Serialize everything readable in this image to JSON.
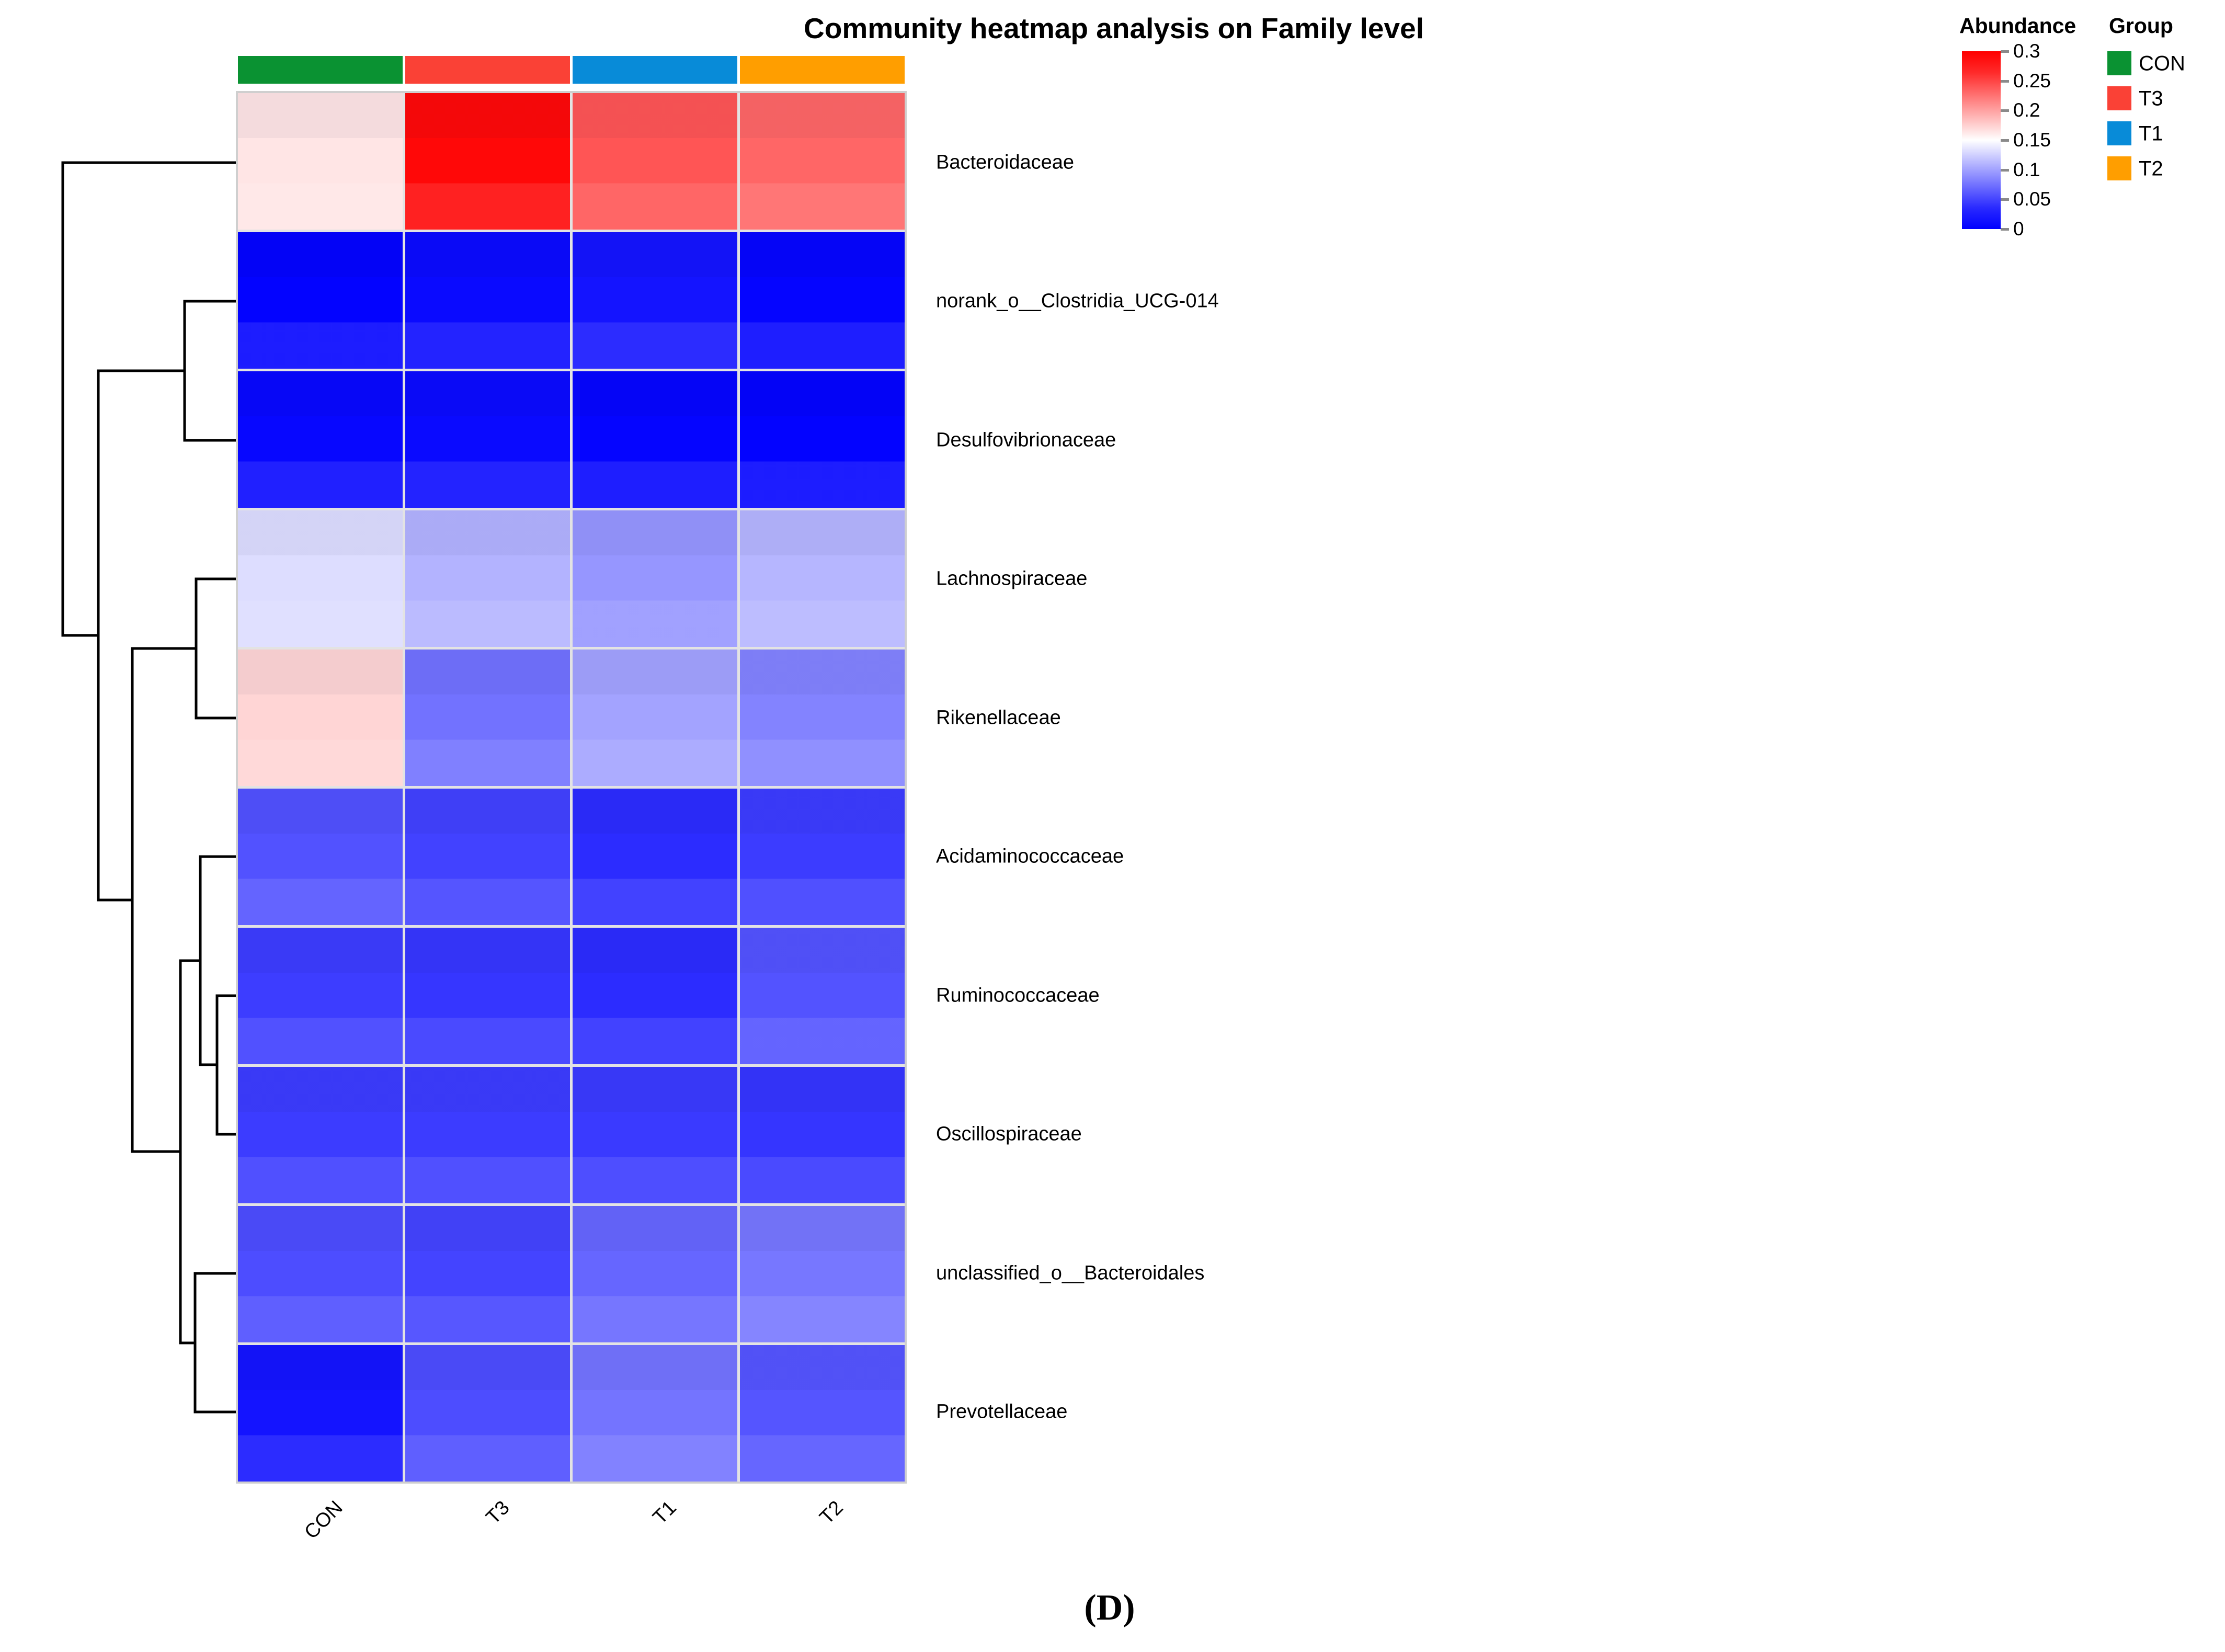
{
  "title": "Community heatmap analysis on Family level",
  "caption": "(D)",
  "chart_data": {
    "type": "heatmap",
    "columns": [
      "CON",
      "T3",
      "T1",
      "T2"
    ],
    "rows": [
      "Bacteroidaceae",
      "norank_o__Clostridia_UCG-014",
      "Desulfovibrionaceae",
      "Lachnospiraceae",
      "Rikenellaceae",
      "Acidaminococcaceae",
      "Ruminococcaceae",
      "Oscillospiraceae",
      "unclassified_o__Bacteroidales",
      "Prevotellaceae"
    ],
    "values": [
      [
        0.165,
        0.295,
        0.25,
        0.24
      ],
      [
        0.002,
        0.006,
        0.012,
        0.003
      ],
      [
        0.004,
        0.006,
        0.003,
        0.002
      ],
      [
        0.13,
        0.105,
        0.088,
        0.107
      ],
      [
        0.175,
        0.067,
        0.096,
        0.077
      ],
      [
        0.048,
        0.039,
        0.026,
        0.035
      ],
      [
        0.036,
        0.032,
        0.026,
        0.049
      ],
      [
        0.035,
        0.035,
        0.034,
        0.031
      ],
      [
        0.045,
        0.04,
        0.06,
        0.07
      ],
      [
        0.012,
        0.045,
        0.068,
        0.05
      ]
    ],
    "value_label": "Abundance",
    "colormap": {
      "min": 0,
      "mid": 0.15,
      "max": 0.3,
      "min_color": "#0000FF",
      "mid_color": "#FFFFFF",
      "max_color": "#FF0000"
    },
    "row_dendrogram_newick": "(Bacteroidaceae,((norank_o__Clostridia_UCG-014,Desulfovibrionaceae),((Lachnospiraceae,Rikenellaceae),((Acidaminococcaceae,(Ruminococcaceae,Oscillospiraceae)),(unclassified_o__Bacteroidales,Prevotellaceae)))));",
    "column_annotation": {
      "groups_in_order": [
        "CON",
        "T3",
        "T1",
        "T2"
      ],
      "colors_in_order": [
        "#0A9232",
        "#FA4136",
        "#088BD8",
        "#FF9E00"
      ]
    }
  },
  "abundance_legend": {
    "title": "Abundance",
    "ticks": [
      "0.3",
      "0.25",
      "0.2",
      "0.15",
      "0.1",
      "0.05",
      "0"
    ]
  },
  "group_legend": {
    "title": "Group",
    "items": [
      {
        "label": "CON",
        "color": "#0A9232"
      },
      {
        "label": "T3",
        "color": "#FA4136"
      },
      {
        "label": "T1",
        "color": "#088BD8"
      },
      {
        "label": "T2",
        "color": "#FF9E00"
      }
    ]
  }
}
